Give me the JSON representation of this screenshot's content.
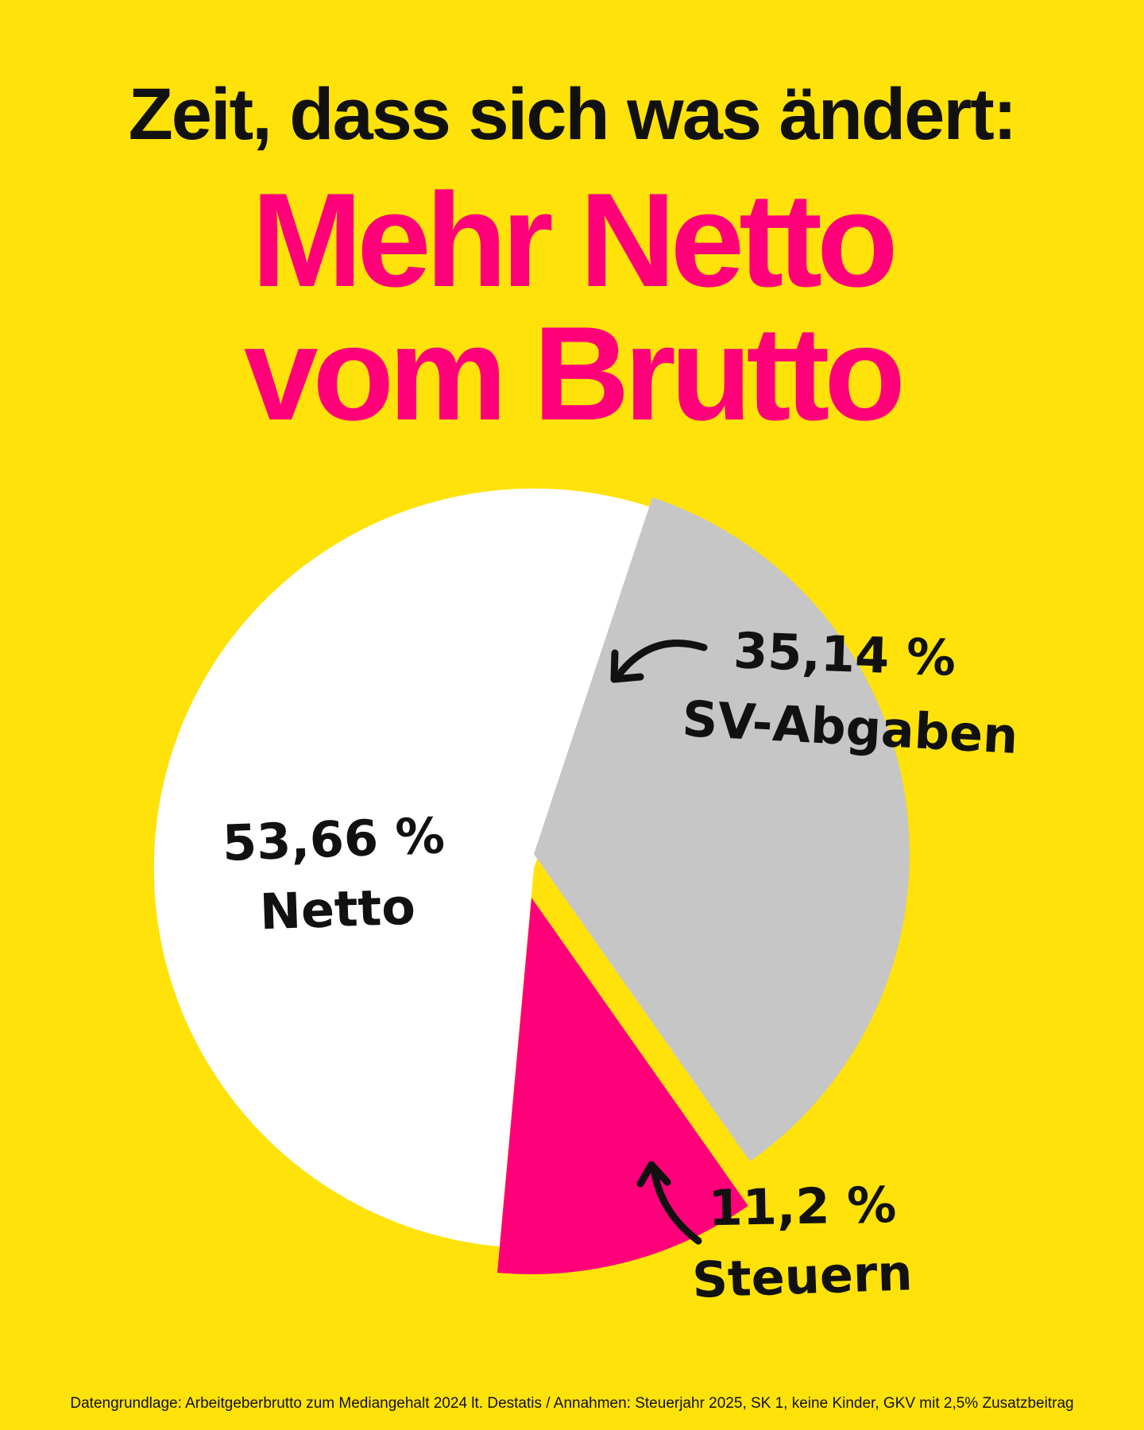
{
  "headline": "Zeit, dass sich was ändert:",
  "title_line1": "Mehr Netto",
  "title_line2": "vom Brutto",
  "chart_data": {
    "type": "pie",
    "unit": "%",
    "slices": [
      {
        "label": "Netto",
        "value": 53.66,
        "value_label": "53,66 %",
        "color": "#FFFFFF"
      },
      {
        "label": "SV-Abgaben",
        "value": 35.14,
        "value_label": "35,14 %",
        "color": "#C6C6C6"
      },
      {
        "label": "Steuern",
        "value": 11.2,
        "value_label": "11,2 %",
        "color": "#FF007A"
      }
    ]
  },
  "footnote": "Datengrundlage: Arbeitgeberbrutto zum Mediangehalt 2024 lt. Destatis / Annahmen: Steuerjahr 2025, SK 1, keine Kinder, GKV mit 2,5% Zusatzbeitrag",
  "colors": {
    "background": "#FFE20A",
    "accent": "#FF007A",
    "text": "#111111"
  }
}
